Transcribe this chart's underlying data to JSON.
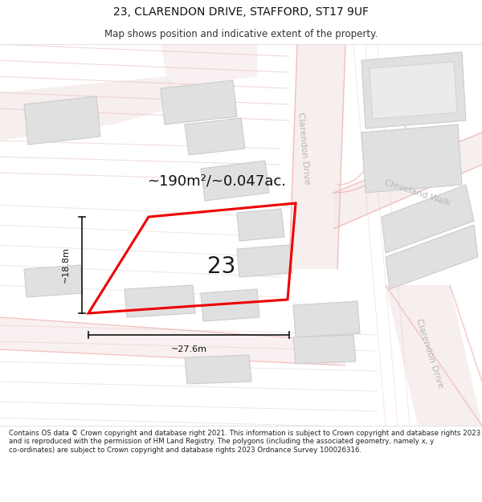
{
  "title": "23, CLARENDON DRIVE, STAFFORD, ST17 9UF",
  "subtitle": "Map shows position and indicative extent of the property.",
  "footer": "Contains OS data © Crown copyright and database right 2021. This information is subject to Crown copyright and database rights 2023 and is reproduced with the permission of HM Land Registry. The polygons (including the associated geometry, namely x, y co-ordinates) are subject to Crown copyright and database rights 2023 Ordnance Survey 100026316.",
  "area_label": "~190m²/~0.047ac.",
  "width_label": "~27.6m",
  "height_label": "~18.8m",
  "plot_number": "23",
  "bg_white": "#ffffff",
  "map_bg": "#fafafa",
  "road_fill": "#f5e8e8",
  "road_line": "#f0b8b8",
  "road_line2": "#e8c0c0",
  "bld_fill": "#e0e0e0",
  "bld_edge": "#cccccc",
  "bld_dark": "#d0d0d0",
  "plot_red": "#ee0000",
  "street_gray": "#b8b8b8",
  "dim_color": "#111111",
  "title_fs": 10,
  "subtitle_fs": 8.5,
  "footer_fs": 6.2,
  "area_fs": 13,
  "dim_fs": 8,
  "number_fs": 20,
  "street_fs": 8
}
